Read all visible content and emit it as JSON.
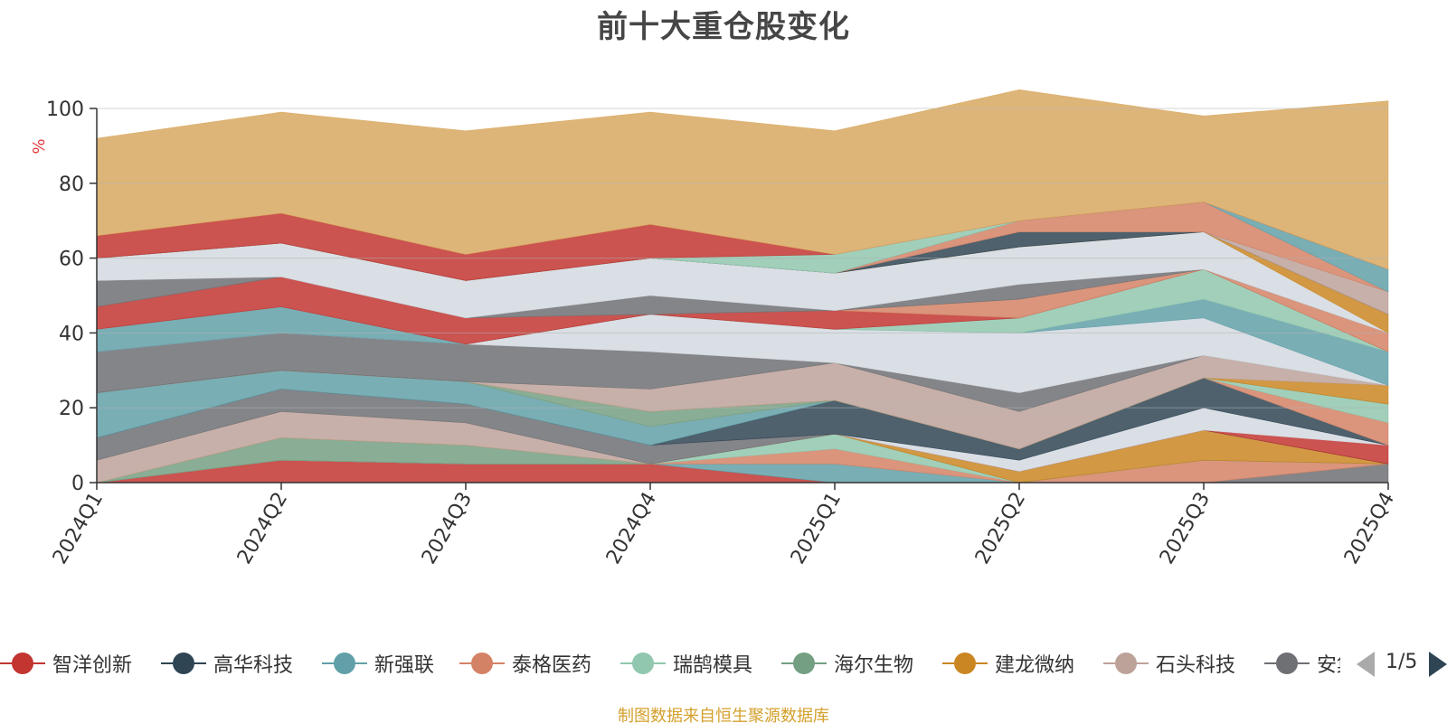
{
  "title": "前十大重仓股变化",
  "source": "制图数据来自恒生聚源数据库",
  "colors": {
    "background": "#ffffff",
    "axis": "#333333",
    "grid": "#b3b3b3",
    "unit": "#e4393c",
    "source": "#d4a02c"
  },
  "legend": {
    "pager": "1/5",
    "prev_icon": "triangle-left-icon",
    "next_icon": "triangle-right-icon",
    "items": [
      {
        "label": "智洋创新",
        "color": "#c23531"
      },
      {
        "label": "高华科技",
        "color": "#2f4554"
      },
      {
        "label": "新强联",
        "color": "#61a0a8"
      },
      {
        "label": "泰格医药",
        "color": "#d48265"
      },
      {
        "label": "瑞鹄模具",
        "color": "#91c7ae"
      },
      {
        "label": "海尔生物",
        "color": "#749f83"
      },
      {
        "label": "建龙微纳",
        "color": "#ca8622"
      },
      {
        "label": "石头科技",
        "color": "#bda29a"
      },
      {
        "label": "安集科技",
        "color": "#6e7074"
      }
    ]
  },
  "chart_data": {
    "type": "area",
    "stacked": true,
    "title": "前十大重仓股变化",
    "unit": "%",
    "categories": [
      "2024Q1",
      "2024Q2",
      "2024Q3",
      "2024Q4",
      "2025Q1",
      "2025Q2",
      "2025Q3",
      "2025Q4"
    ],
    "ylim": [
      0,
      100
    ],
    "yticks": [
      0,
      20,
      40,
      60,
      80,
      100
    ],
    "grid": true,
    "legend_position": "bottom",
    "series": [
      {
        "color": "#6e7074",
        "values": [
          0,
          0,
          0,
          0,
          0,
          0,
          0,
          5
        ]
      },
      {
        "color": "#d48265",
        "values": [
          0,
          0,
          0,
          0,
          0,
          0,
          6,
          0
        ]
      },
      {
        "color": "#c23531",
        "values": [
          0,
          6,
          5,
          5,
          0,
          0,
          0,
          0
        ]
      },
      {
        "color": "#61a0a8",
        "values": [
          0,
          0,
          0,
          0,
          5,
          0,
          0,
          0
        ]
      },
      {
        "color": "#d48265",
        "values": [
          0,
          0,
          0,
          0,
          4,
          0,
          0,
          0
        ]
      },
      {
        "color": "#91c7ae",
        "values": [
          0,
          0,
          0,
          0,
          4,
          0,
          0,
          0
        ]
      },
      {
        "color": "#749f83",
        "values": [
          0,
          6,
          5,
          0,
          0,
          0,
          0,
          0
        ]
      },
      {
        "color": "#ca8622",
        "values": [
          0,
          0,
          0,
          0,
          0,
          3,
          8,
          0
        ]
      },
      {
        "color": "#bda29a",
        "values": [
          6,
          7,
          6,
          0,
          0,
          0,
          0,
          0
        ]
      },
      {
        "color": "#6e7074",
        "values": [
          6,
          6,
          5,
          5,
          0,
          0,
          0,
          0
        ]
      },
      {
        "color": "#2f4554",
        "values": [
          0,
          0,
          0,
          0,
          0,
          0,
          0,
          0
        ]
      },
      {
        "color": "#c23531",
        "values": [
          0,
          0,
          0,
          0,
          0,
          0,
          0,
          5
        ]
      },
      {
        "color": "#d4d9e0",
        "values": [
          0,
          0,
          0,
          0,
          0,
          3,
          6,
          0
        ]
      },
      {
        "color": "#2f4554",
        "values": [
          0,
          0,
          0,
          0,
          9,
          3,
          8,
          0
        ]
      },
      {
        "color": "#61a0a8",
        "values": [
          12,
          5,
          6,
          5,
          0,
          0,
          0,
          0
        ]
      },
      {
        "color": "#d48265",
        "values": [
          0,
          0,
          0,
          0,
          0,
          0,
          0,
          6
        ]
      },
      {
        "color": "#91c7ae",
        "values": [
          0,
          0,
          0,
          0,
          0,
          0,
          0,
          5
        ]
      },
      {
        "color": "#749f83",
        "values": [
          0,
          0,
          0,
          4,
          0,
          0,
          0,
          0
        ]
      },
      {
        "color": "#ca8622",
        "values": [
          0,
          0,
          0,
          0,
          0,
          0,
          0,
          5
        ]
      },
      {
        "color": "#bda29a",
        "values": [
          0,
          0,
          0,
          6,
          10,
          10,
          6,
          0
        ]
      },
      {
        "color": "#6e7074",
        "values": [
          11,
          10,
          10,
          10,
          0,
          5,
          0,
          0
        ]
      },
      {
        "color": "#d4d9e0",
        "values": [
          0,
          0,
          0,
          10,
          9,
          16,
          10,
          0
        ]
      },
      {
        "color": "#61a0a8",
        "values": [
          6,
          7,
          0,
          0,
          0,
          0,
          5,
          9
        ]
      },
      {
        "color": "#91c7ae",
        "values": [
          0,
          0,
          0,
          0,
          0,
          4,
          8,
          0
        ]
      },
      {
        "color": "#c23531",
        "values": [
          6,
          8,
          7,
          0,
          5,
          0,
          0,
          0
        ]
      },
      {
        "color": "#d48265",
        "values": [
          0,
          0,
          0,
          0,
          0,
          5,
          0,
          5
        ]
      },
      {
        "color": "#6e7074",
        "values": [
          7,
          0,
          0,
          5,
          0,
          4,
          0,
          0
        ]
      },
      {
        "color": "#d4d9e0",
        "values": [
          6,
          9,
          10,
          10,
          10,
          10,
          10,
          0
        ]
      },
      {
        "color": "#ca8622",
        "values": [
          0,
          0,
          0,
          0,
          0,
          0,
          0,
          5
        ]
      },
      {
        "color": "#2f4554",
        "values": [
          0,
          0,
          0,
          0,
          0,
          4,
          0,
          0
        ]
      },
      {
        "color": "#bda29a",
        "values": [
          0,
          0,
          0,
          0,
          0,
          0,
          0,
          6
        ]
      },
      {
        "color": "#d48265",
        "values": [
          0,
          0,
          0,
          0,
          0,
          3,
          8,
          0
        ]
      },
      {
        "color": "#61a0a8",
        "values": [
          0,
          0,
          0,
          0,
          0,
          0,
          0,
          6
        ]
      },
      {
        "color": "#91c7ae",
        "values": [
          0,
          0,
          0,
          0,
          5,
          0,
          0,
          0
        ]
      },
      {
        "color": "#c23531",
        "values": [
          6,
          8,
          7,
          9,
          0,
          0,
          0,
          0
        ]
      },
      {
        "color": "#d8a860",
        "values": [
          26,
          27,
          33,
          30,
          33,
          35,
          23,
          45
        ]
      }
    ]
  }
}
